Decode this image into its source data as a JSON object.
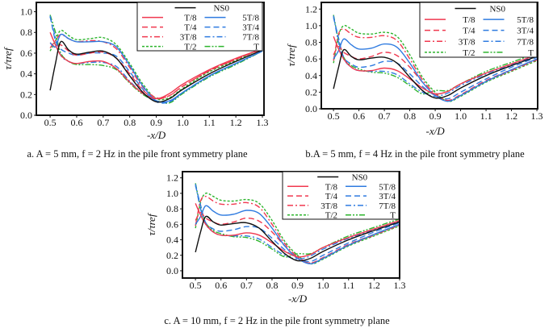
{
  "chart_data": [
    {
      "type": "line",
      "caption": "a. A = 5 mm, f = 2 Hz in the pile front symmetry plane",
      "xlabel": "-x/D",
      "ylabel": "τ/τref",
      "xlim": [
        0.448,
        1.306
      ],
      "ylim": [
        0,
        1.09
      ],
      "xticks": [
        "0.5",
        "0.6",
        "0.7",
        "0.8",
        "0.9",
        "1.0",
        "1.1",
        "1.2",
        "1.3"
      ],
      "yticks": [
        "0.0",
        "0.2",
        "0.4",
        "0.6",
        "0.8",
        "1.0"
      ],
      "legend_position": "top-right",
      "x": [
        0.5,
        0.52,
        0.54,
        0.57,
        0.6,
        0.65,
        0.7,
        0.75,
        0.8,
        0.85,
        0.9,
        0.95,
        1.0,
        1.1,
        1.2,
        1.3
      ],
      "series": [
        {
          "name": "NS0",
          "values": [
            0.24,
            0.5,
            0.71,
            0.63,
            0.59,
            0.61,
            0.62,
            0.55,
            0.38,
            0.22,
            0.13,
            0.16,
            0.25,
            0.4,
            0.52,
            0.63
          ]
        },
        {
          "name": "T/8",
          "values": [
            0.8,
            0.68,
            0.58,
            0.52,
            0.5,
            0.52,
            0.52,
            0.45,
            0.32,
            0.21,
            0.16,
            0.21,
            0.3,
            0.44,
            0.55,
            0.64
          ]
        },
        {
          "name": "5T/8",
          "values": [
            0.7,
            0.66,
            0.78,
            0.74,
            0.71,
            0.71,
            0.71,
            0.66,
            0.48,
            0.28,
            0.14,
            0.14,
            0.22,
            0.38,
            0.5,
            0.62
          ]
        },
        {
          "name": "T/4",
          "values": [
            0.7,
            0.66,
            0.68,
            0.62,
            0.58,
            0.6,
            0.61,
            0.55,
            0.4,
            0.24,
            0.16,
            0.19,
            0.28,
            0.43,
            0.54,
            0.64
          ]
        },
        {
          "name": "3T/4",
          "values": [
            0.96,
            0.72,
            0.64,
            0.6,
            0.58,
            0.6,
            0.6,
            0.57,
            0.42,
            0.25,
            0.13,
            0.13,
            0.22,
            0.38,
            0.5,
            0.62
          ]
        },
        {
          "name": "3T/8",
          "values": [
            0.65,
            0.72,
            0.78,
            0.74,
            0.71,
            0.72,
            0.71,
            0.64,
            0.46,
            0.27,
            0.17,
            0.19,
            0.28,
            0.43,
            0.54,
            0.65
          ]
        },
        {
          "name": "7T/8",
          "values": [
            0.95,
            0.75,
            0.58,
            0.52,
            0.5,
            0.51,
            0.51,
            0.47,
            0.33,
            0.21,
            0.14,
            0.13,
            0.22,
            0.38,
            0.5,
            0.62
          ]
        },
        {
          "name": "T/2",
          "values": [
            0.62,
            0.72,
            0.82,
            0.77,
            0.73,
            0.74,
            0.75,
            0.68,
            0.5,
            0.3,
            0.16,
            0.17,
            0.26,
            0.42,
            0.53,
            0.65
          ]
        },
        {
          "name": "T",
          "values": [
            0.97,
            0.8,
            0.6,
            0.52,
            0.49,
            0.49,
            0.48,
            0.44,
            0.31,
            0.2,
            0.14,
            0.12,
            0.21,
            0.37,
            0.49,
            0.62
          ]
        }
      ]
    },
    {
      "type": "line",
      "caption": "b.A = 5 mm, f = 4 Hz in the pile front symmetry plane",
      "xlabel": "-x/D",
      "ylabel": "τ/τref",
      "xlim": [
        0.452,
        1.303
      ],
      "ylim": [
        0,
        1.28
      ],
      "xticks": [
        "0.5",
        "0.6",
        "0.7",
        "0.8",
        "0.9",
        "1.0",
        "1.1",
        "1.2",
        "1.3"
      ],
      "yticks": [
        "0.0",
        "0.2",
        "0.4",
        "0.6",
        "0.8",
        "1.0",
        "1.2"
      ],
      "legend_position": "top-right",
      "x": [
        0.5,
        0.52,
        0.54,
        0.57,
        0.6,
        0.65,
        0.7,
        0.75,
        0.8,
        0.85,
        0.9,
        0.95,
        1.0,
        1.1,
        1.2,
        1.3
      ],
      "series": [
        {
          "name": "NS0",
          "values": [
            0.24,
            0.5,
            0.71,
            0.63,
            0.59,
            0.61,
            0.62,
            0.55,
            0.38,
            0.22,
            0.13,
            0.16,
            0.25,
            0.4,
            0.52,
            0.63
          ]
        },
        {
          "name": "T/8",
          "values": [
            0.87,
            0.72,
            0.6,
            0.5,
            0.46,
            0.46,
            0.49,
            0.46,
            0.36,
            0.25,
            0.18,
            0.21,
            0.3,
            0.43,
            0.54,
            0.65
          ]
        },
        {
          "name": "5T/8",
          "values": [
            0.6,
            0.7,
            0.84,
            0.77,
            0.72,
            0.73,
            0.78,
            0.74,
            0.55,
            0.32,
            0.16,
            0.09,
            0.16,
            0.33,
            0.47,
            0.6
          ]
        },
        {
          "name": "T/4",
          "values": [
            0.65,
            0.75,
            0.68,
            0.63,
            0.6,
            0.63,
            0.68,
            0.64,
            0.5,
            0.32,
            0.16,
            0.1,
            0.17,
            0.34,
            0.47,
            0.6
          ]
        },
        {
          "name": "3T/4",
          "values": [
            1.1,
            0.85,
            0.62,
            0.54,
            0.5,
            0.52,
            0.57,
            0.55,
            0.42,
            0.27,
            0.16,
            0.12,
            0.2,
            0.36,
            0.5,
            0.62
          ]
        },
        {
          "name": "3T/8",
          "values": [
            0.58,
            0.9,
            0.96,
            0.9,
            0.86,
            0.86,
            0.88,
            0.82,
            0.6,
            0.35,
            0.18,
            0.1,
            0.16,
            0.33,
            0.46,
            0.59
          ]
        },
        {
          "name": "7T/8",
          "values": [
            1.12,
            0.8,
            0.6,
            0.5,
            0.46,
            0.45,
            0.45,
            0.41,
            0.3,
            0.2,
            0.15,
            0.19,
            0.28,
            0.42,
            0.53,
            0.64
          ]
        },
        {
          "name": "T/2",
          "values": [
            0.55,
            0.88,
            1.0,
            0.96,
            0.91,
            0.9,
            0.92,
            0.87,
            0.65,
            0.38,
            0.2,
            0.09,
            0.15,
            0.32,
            0.45,
            0.58
          ]
        },
        {
          "name": "T",
          "values": [
            1.13,
            0.82,
            0.62,
            0.52,
            0.48,
            0.44,
            0.43,
            0.38,
            0.28,
            0.18,
            0.22,
            0.22,
            0.3,
            0.45,
            0.56,
            0.67
          ]
        }
      ]
    },
    {
      "type": "line",
      "caption": "c. A = 10 mm, f = 2 Hz in the pile front symmetry plane",
      "xlabel": "-x/D",
      "ylabel": "τ/τref",
      "xlim": [
        0.449,
        1.3
      ],
      "ylim": [
        -0.094,
        1.28
      ],
      "xticks": [
        "0.5",
        "0.6",
        "0.7",
        "0.8",
        "0.9",
        "1.0",
        "1.1",
        "1.2",
        "1.3"
      ],
      "yticks": [
        "0.0",
        "0.2",
        "0.4",
        "0.6",
        "0.8",
        "1.0",
        "1.2"
      ],
      "legend_position": "top-right",
      "x": [
        0.5,
        0.52,
        0.54,
        0.57,
        0.6,
        0.65,
        0.7,
        0.75,
        0.8,
        0.85,
        0.9,
        0.95,
        1.0,
        1.1,
        1.2,
        1.3
      ],
      "series": [
        {
          "name": "NS0",
          "values": [
            0.24,
            0.5,
            0.7,
            0.63,
            0.59,
            0.61,
            0.62,
            0.55,
            0.38,
            0.22,
            0.13,
            0.16,
            0.25,
            0.4,
            0.52,
            0.63
          ]
        },
        {
          "name": "T/8",
          "values": [
            0.87,
            0.72,
            0.6,
            0.5,
            0.46,
            0.46,
            0.49,
            0.46,
            0.36,
            0.25,
            0.18,
            0.21,
            0.3,
            0.43,
            0.54,
            0.65
          ]
        },
        {
          "name": "5T/8",
          "values": [
            0.6,
            0.7,
            0.84,
            0.77,
            0.72,
            0.73,
            0.78,
            0.74,
            0.55,
            0.32,
            0.16,
            0.09,
            0.16,
            0.33,
            0.47,
            0.6
          ]
        },
        {
          "name": "T/4",
          "values": [
            0.65,
            0.75,
            0.68,
            0.63,
            0.6,
            0.63,
            0.68,
            0.64,
            0.5,
            0.32,
            0.16,
            0.1,
            0.17,
            0.34,
            0.47,
            0.6
          ]
        },
        {
          "name": "3T/4",
          "values": [
            1.1,
            0.85,
            0.62,
            0.54,
            0.51,
            0.53,
            0.57,
            0.55,
            0.42,
            0.27,
            0.16,
            0.12,
            0.2,
            0.36,
            0.5,
            0.62
          ]
        },
        {
          "name": "3T/8",
          "values": [
            0.58,
            0.9,
            0.96,
            0.9,
            0.86,
            0.86,
            0.88,
            0.82,
            0.6,
            0.35,
            0.18,
            0.1,
            0.16,
            0.33,
            0.46,
            0.59
          ]
        },
        {
          "name": "7T/8",
          "values": [
            1.12,
            0.8,
            0.6,
            0.5,
            0.46,
            0.45,
            0.45,
            0.41,
            0.3,
            0.2,
            0.15,
            0.19,
            0.28,
            0.42,
            0.53,
            0.64
          ]
        },
        {
          "name": "T/2",
          "values": [
            0.55,
            0.88,
            1.0,
            0.96,
            0.91,
            0.9,
            0.92,
            0.87,
            0.65,
            0.38,
            0.2,
            0.09,
            0.15,
            0.32,
            0.45,
            0.58
          ]
        },
        {
          "name": "T",
          "values": [
            1.13,
            0.82,
            0.62,
            0.52,
            0.48,
            0.44,
            0.43,
            0.38,
            0.28,
            0.18,
            0.22,
            0.22,
            0.3,
            0.45,
            0.56,
            0.67
          ]
        }
      ]
    }
  ],
  "colors": {
    "NS0": "#111111",
    "red": "#f0384f",
    "blue": "#2f7be0",
    "green": "#2db52d"
  }
}
